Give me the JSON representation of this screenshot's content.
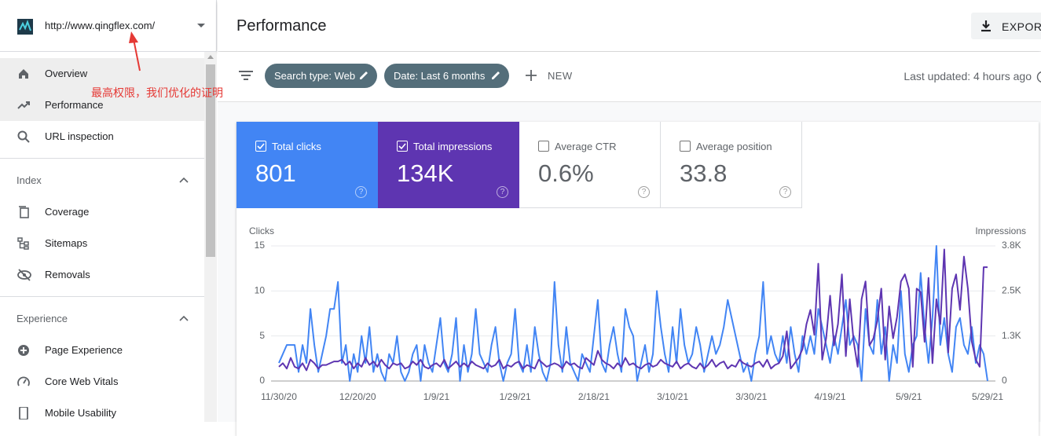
{
  "sidebar": {
    "site_url": "http://www.qingflex.com/",
    "top_items": [
      "Overview",
      "Performance",
      "URL inspection"
    ],
    "sections": [
      {
        "title": "Index",
        "items": [
          "Coverage",
          "Sitemaps",
          "Removals"
        ]
      },
      {
        "title": "Experience",
        "items": [
          "Page Experience",
          "Core Web Vitals",
          "Mobile Usability"
        ]
      }
    ]
  },
  "annotation": "最高权限，我们优化的证明",
  "header": {
    "title": "Performance",
    "export": "EXPORT"
  },
  "filters": {
    "chips": [
      "Search type: Web",
      "Date: Last 6 months"
    ],
    "new": "NEW",
    "last_updated": "Last updated: 4 hours ago"
  },
  "metrics": [
    {
      "label": "Total clicks",
      "value": "801"
    },
    {
      "label": "Total impressions",
      "value": "134K"
    },
    {
      "label": "Average CTR",
      "value": "0.6%"
    },
    {
      "label": "Average position",
      "value": "33.8"
    }
  ],
  "chart_data": {
    "type": "line",
    "y_label": "Clicks",
    "y2_label": "Impressions",
    "categories": [
      "11/30/20",
      null,
      null,
      null,
      null,
      null,
      null,
      null,
      null,
      null,
      null,
      null,
      null,
      null,
      null,
      null,
      null,
      null,
      null,
      null,
      "12/20/20",
      null,
      null,
      null,
      null,
      null,
      null,
      null,
      null,
      null,
      null,
      null,
      null,
      null,
      null,
      null,
      null,
      null,
      null,
      null,
      "1/9/21",
      null,
      null,
      null,
      null,
      null,
      null,
      null,
      null,
      null,
      null,
      null,
      null,
      null,
      null,
      null,
      null,
      null,
      null,
      null,
      "1/29/21",
      null,
      null,
      null,
      null,
      null,
      null,
      null,
      null,
      null,
      null,
      null,
      null,
      null,
      null,
      null,
      null,
      null,
      null,
      null,
      "2/18/21",
      null,
      null,
      null,
      null,
      null,
      null,
      null,
      null,
      null,
      null,
      null,
      null,
      null,
      null,
      null,
      null,
      null,
      null,
      null,
      "3/10/21",
      null,
      null,
      null,
      null,
      null,
      null,
      null,
      null,
      null,
      null,
      null,
      null,
      null,
      null,
      null,
      null,
      null,
      null,
      null,
      "3/30/21",
      null,
      null,
      null,
      null,
      null,
      null,
      null,
      null,
      null,
      null,
      null,
      null,
      null,
      null,
      null,
      null,
      null,
      null,
      null,
      "4/19/21",
      null,
      null,
      null,
      null,
      null,
      null,
      null,
      null,
      null,
      null,
      null,
      null,
      null,
      null,
      null,
      null,
      null,
      null,
      null,
      "5/9/21",
      null,
      null,
      null,
      null,
      null,
      null,
      null,
      null,
      null,
      null,
      null,
      null,
      null,
      null,
      null,
      null,
      null,
      null,
      null,
      "5/29/21"
    ],
    "series": [
      {
        "color": "#4285f4",
        "values": [
          2,
          3,
          4,
          4,
          4,
          1,
          4,
          2,
          8,
          4,
          1,
          3,
          5,
          8,
          8,
          11,
          2,
          4,
          0,
          3,
          1,
          5,
          2,
          6,
          1,
          3,
          1,
          0,
          3,
          2,
          5,
          1,
          0,
          1,
          3,
          4,
          0,
          4,
          2,
          1,
          4,
          7,
          2,
          1,
          3,
          7,
          0,
          4,
          1,
          3,
          8,
          3,
          2,
          1,
          4,
          6,
          2,
          0,
          2,
          3,
          8,
          2,
          1,
          4,
          1,
          6,
          3,
          1,
          0,
          2,
          11,
          4,
          1,
          6,
          2,
          1,
          0,
          3,
          2,
          1,
          5,
          9,
          2,
          1,
          4,
          6,
          3,
          1,
          8,
          6,
          5,
          0,
          2,
          4,
          1,
          3,
          10,
          6,
          3,
          1,
          6,
          2,
          8,
          4,
          2,
          3,
          6,
          4,
          1,
          3,
          5,
          3,
          4,
          6,
          9,
          7,
          5,
          3,
          1,
          2,
          0,
          3,
          5,
          11,
          3,
          5,
          3,
          2,
          5,
          2,
          6,
          3,
          1,
          5,
          3,
          5,
          3,
          8,
          6,
          4,
          2,
          5,
          3,
          6,
          9,
          4,
          5,
          4,
          0,
          8,
          4,
          3,
          9,
          3,
          6,
          0,
          4,
          2,
          10,
          3,
          1,
          4,
          5,
          12,
          6,
          2,
          7,
          15,
          4,
          7,
          3,
          1,
          6,
          7,
          4,
          3,
          6,
          2,
          4,
          3,
          0
        ]
      },
      {
        "color": "#5e35b1",
        "axis": "y2",
        "values": [
          400,
          500,
          350,
          650,
          400,
          350,
          500,
          300,
          600,
          500,
          350,
          450,
          450,
          500,
          550,
          550,
          600,
          450,
          550,
          350,
          500,
          400,
          650,
          450,
          550,
          400,
          600,
          450,
          350,
          500,
          450,
          500,
          350,
          400,
          550,
          450,
          600,
          400,
          350,
          450,
          500,
          400,
          600,
          350,
          450,
          550,
          400,
          500,
          400,
          550,
          450,
          400,
          350,
          500,
          400,
          450,
          600,
          350,
          450,
          400,
          500,
          550,
          350,
          450,
          400,
          350,
          600,
          500,
          400,
          450,
          500,
          450,
          350,
          550,
          450,
          500,
          400,
          350,
          650,
          550,
          450,
          850,
          600,
          500,
          450,
          350,
          500,
          400,
          650,
          450,
          500,
          400,
          350,
          450,
          500,
          400,
          450,
          600,
          500,
          450,
          400,
          550,
          350,
          450,
          500,
          400,
          350,
          500,
          350,
          450,
          600,
          400,
          500,
          550,
          350,
          450,
          400,
          600,
          500,
          450,
          400,
          500,
          550,
          400,
          600,
          350,
          450,
          500,
          700,
          1400,
          350,
          500,
          650,
          900,
          1600,
          2000,
          1300,
          3300,
          600,
          1200,
          2400,
          1000,
          1600,
          3000,
          700,
          2300,
          1100,
          400,
          2300,
          2800,
          1000,
          1200,
          1700,
          2600,
          600,
          2100,
          1200,
          1800,
          2800,
          3000,
          2600,
          400,
          2600,
          2500,
          1100,
          2900,
          500,
          2300,
          1600,
          3700,
          800,
          2600,
          3000,
          2000,
          3500,
          2600,
          1100,
          600,
          400,
          3200,
          3200
        ]
      }
    ],
    "ylim": [
      0,
      15
    ],
    "yticks": [
      0,
      5,
      10,
      15
    ],
    "y2lim": [
      0,
      3800
    ],
    "y2ticks": [
      0,
      {
        "value": 1267,
        "label": "1.3K"
      },
      {
        "value": 2533,
        "label": "2.5K"
      },
      {
        "value": 3800,
        "label": "3.8K"
      }
    ],
    "grid": true
  }
}
